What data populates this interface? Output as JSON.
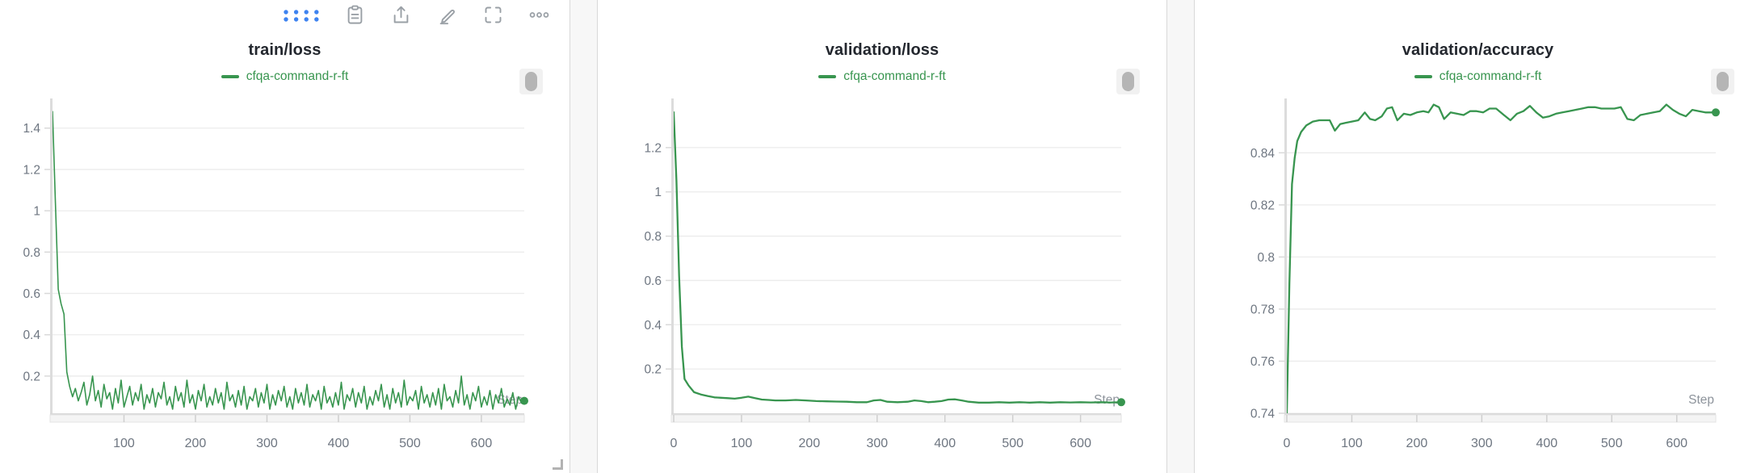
{
  "colors": {
    "series_green": "#38954f",
    "toolbar_blue": "#3e83f0",
    "icon_gray": "#9aa0a6",
    "grid_gray": "#ececec",
    "axis_rail": "#dcdcdc",
    "tick_label": "#6e7681",
    "step_label": "#8d939b",
    "title_dark": "#23272e"
  },
  "toolbar": {
    "icons": [
      {
        "name": "drag-handle",
        "style": "blue-dot-grid"
      },
      {
        "name": "copy-to-clipboard"
      },
      {
        "name": "export-share"
      },
      {
        "name": "edit-pencil"
      },
      {
        "name": "fullscreen"
      },
      {
        "name": "more-options"
      }
    ]
  },
  "panels": [
    {
      "title": "train/loss",
      "series_name": "cfqa-command-r-ft"
    },
    {
      "title": "validation/loss",
      "series_name": "cfqa-command-r-ft"
    },
    {
      "title": "validation/accuracy",
      "series_name": "cfqa-command-r-ft"
    }
  ],
  "chart_data": [
    {
      "type": "line",
      "title": "train/loss",
      "xlabel": "Step",
      "ylabel": "",
      "xlim": [
        0,
        660
      ],
      "ylim": [
        0.02,
        1.52
      ],
      "x_ticks": [
        100,
        200,
        300,
        400,
        500,
        600
      ],
      "y_ticks": [
        0.2,
        0.4,
        0.6,
        0.8,
        1.0,
        1.2,
        1.4
      ],
      "grid": "horizontal",
      "legend_position": "top-center",
      "series": [
        {
          "name": "cfqa-command-r-ft",
          "color": "#38954f",
          "x_start": 0,
          "x_step": 4,
          "end_dot": true,
          "values": [
            1.48,
            1.05,
            0.62,
            0.55,
            0.5,
            0.22,
            0.15,
            0.1,
            0.14,
            0.08,
            0.12,
            0.17,
            0.06,
            0.11,
            0.2,
            0.08,
            0.13,
            0.05,
            0.16,
            0.09,
            0.12,
            0.04,
            0.14,
            0.07,
            0.18,
            0.05,
            0.1,
            0.15,
            0.06,
            0.12,
            0.08,
            0.16,
            0.04,
            0.11,
            0.07,
            0.14,
            0.05,
            0.12,
            0.09,
            0.17,
            0.06,
            0.1,
            0.04,
            0.15,
            0.08,
            0.12,
            0.05,
            0.18,
            0.07,
            0.11,
            0.04,
            0.13,
            0.08,
            0.16,
            0.05,
            0.1,
            0.06,
            0.14,
            0.07,
            0.12,
            0.04,
            0.17,
            0.08,
            0.11,
            0.05,
            0.13,
            0.06,
            0.15,
            0.04,
            0.1,
            0.08,
            0.14,
            0.05,
            0.12,
            0.07,
            0.16,
            0.04,
            0.11,
            0.06,
            0.13,
            0.08,
            0.15,
            0.05,
            0.1,
            0.04,
            0.14,
            0.07,
            0.12,
            0.06,
            0.16,
            0.05,
            0.11,
            0.08,
            0.13,
            0.04,
            0.15,
            0.07,
            0.1,
            0.05,
            0.12,
            0.06,
            0.17,
            0.04,
            0.11,
            0.08,
            0.14,
            0.05,
            0.12,
            0.07,
            0.15,
            0.04,
            0.1,
            0.06,
            0.13,
            0.08,
            0.16,
            0.05,
            0.11,
            0.04,
            0.14,
            0.07,
            0.12,
            0.05,
            0.18,
            0.06,
            0.1,
            0.08,
            0.13,
            0.04,
            0.15,
            0.07,
            0.11,
            0.05,
            0.12,
            0.06,
            0.14,
            0.04,
            0.16,
            0.08,
            0.1,
            0.05,
            0.13,
            0.07,
            0.2,
            0.06,
            0.11,
            0.04,
            0.12,
            0.08,
            0.15,
            0.05,
            0.1,
            0.06,
            0.13,
            0.04,
            0.11,
            0.07,
            0.14,
            0.05,
            0.09,
            0.06,
            0.12,
            0.04,
            0.1,
            0.07,
            0.08
          ]
        }
      ]
    },
    {
      "type": "line",
      "title": "validation/loss",
      "xlabel": "Step",
      "ylabel": "",
      "xlim": [
        0,
        660
      ],
      "ylim": [
        0.0,
        1.4
      ],
      "x_ticks": [
        0,
        100,
        200,
        300,
        400,
        500,
        600
      ],
      "y_ticks": [
        0.2,
        0.4,
        0.6,
        0.8,
        1.0,
        1.2
      ],
      "grid": "horizontal",
      "legend_position": "top-center",
      "series": [
        {
          "name": "cfqa-command-r-ft",
          "color": "#38954f",
          "end_dot": true,
          "points": [
            [
              0,
              1.36
            ],
            [
              4,
              1.05
            ],
            [
              8,
              0.62
            ],
            [
              12,
              0.3
            ],
            [
              16,
              0.155
            ],
            [
              22,
              0.125
            ],
            [
              30,
              0.095
            ],
            [
              40,
              0.085
            ],
            [
              50,
              0.078
            ],
            [
              60,
              0.072
            ],
            [
              70,
              0.07
            ],
            [
              80,
              0.068
            ],
            [
              90,
              0.066
            ],
            [
              100,
              0.07
            ],
            [
              110,
              0.075
            ],
            [
              120,
              0.068
            ],
            [
              130,
              0.062
            ],
            [
              140,
              0.06
            ],
            [
              150,
              0.058
            ],
            [
              165,
              0.058
            ],
            [
              180,
              0.06
            ],
            [
              195,
              0.058
            ],
            [
              210,
              0.055
            ],
            [
              225,
              0.054
            ],
            [
              240,
              0.053
            ],
            [
              255,
              0.052
            ],
            [
              270,
              0.05
            ],
            [
              285,
              0.05
            ],
            [
              295,
              0.058
            ],
            [
              305,
              0.06
            ],
            [
              315,
              0.052
            ],
            [
              330,
              0.05
            ],
            [
              345,
              0.052
            ],
            [
              355,
              0.058
            ],
            [
              365,
              0.055
            ],
            [
              375,
              0.05
            ],
            [
              385,
              0.052
            ],
            [
              395,
              0.055
            ],
            [
              405,
              0.062
            ],
            [
              415,
              0.063
            ],
            [
              425,
              0.058
            ],
            [
              435,
              0.052
            ],
            [
              450,
              0.048
            ],
            [
              465,
              0.048
            ],
            [
              480,
              0.05
            ],
            [
              495,
              0.048
            ],
            [
              510,
              0.05
            ],
            [
              525,
              0.048
            ],
            [
              540,
              0.05
            ],
            [
              555,
              0.048
            ],
            [
              570,
              0.05
            ],
            [
              585,
              0.049
            ],
            [
              600,
              0.05
            ],
            [
              615,
              0.049
            ],
            [
              630,
              0.05
            ],
            [
              645,
              0.049
            ],
            [
              660,
              0.05
            ]
          ]
        }
      ]
    },
    {
      "type": "line",
      "title": "validation/accuracy",
      "xlabel": "Step",
      "ylabel": "",
      "xlim": [
        0,
        660
      ],
      "ylim": [
        0.74,
        0.859
      ],
      "x_ticks": [
        0,
        100,
        200,
        300,
        400,
        500,
        600
      ],
      "y_ticks": [
        0.74,
        0.76,
        0.78,
        0.8,
        0.82,
        0.84
      ],
      "grid": "horizontal",
      "legend_position": "top-center",
      "series": [
        {
          "name": "cfqa-command-r-ft",
          "color": "#38954f",
          "end_dot": true,
          "points": [
            [
              0,
              0.74
            ],
            [
              4,
              0.79
            ],
            [
              8,
              0.828
            ],
            [
              12,
              0.838
            ],
            [
              16,
              0.8445
            ],
            [
              22,
              0.848
            ],
            [
              30,
              0.8505
            ],
            [
              40,
              0.852
            ],
            [
              50,
              0.8525
            ],
            [
              58,
              0.8525
            ],
            [
              66,
              0.8525
            ],
            [
              74,
              0.8485
            ],
            [
              82,
              0.851
            ],
            [
              90,
              0.8515
            ],
            [
              100,
              0.852
            ],
            [
              110,
              0.8525
            ],
            [
              120,
              0.8555
            ],
            [
              128,
              0.853
            ],
            [
              136,
              0.8525
            ],
            [
              146,
              0.854
            ],
            [
              154,
              0.857
            ],
            [
              162,
              0.8575
            ],
            [
              170,
              0.8525
            ],
            [
              180,
              0.855
            ],
            [
              190,
              0.8545
            ],
            [
              200,
              0.8555
            ],
            [
              210,
              0.856
            ],
            [
              218,
              0.8555
            ],
            [
              226,
              0.8585
            ],
            [
              234,
              0.8575
            ],
            [
              242,
              0.853
            ],
            [
              252,
              0.8555
            ],
            [
              262,
              0.855
            ],
            [
              272,
              0.8545
            ],
            [
              282,
              0.856
            ],
            [
              292,
              0.856
            ],
            [
              302,
              0.8555
            ],
            [
              312,
              0.857
            ],
            [
              322,
              0.857
            ],
            [
              334,
              0.8545
            ],
            [
              344,
              0.8525
            ],
            [
              354,
              0.855
            ],
            [
              364,
              0.856
            ],
            [
              374,
              0.858
            ],
            [
              384,
              0.8555
            ],
            [
              394,
              0.8535
            ],
            [
              404,
              0.854
            ],
            [
              414,
              0.855
            ],
            [
              424,
              0.8555
            ],
            [
              434,
              0.856
            ],
            [
              444,
              0.8565
            ],
            [
              454,
              0.857
            ],
            [
              464,
              0.8575
            ],
            [
              474,
              0.8575
            ],
            [
              484,
              0.857
            ],
            [
              494,
              0.857
            ],
            [
              504,
              0.857
            ],
            [
              514,
              0.8575
            ],
            [
              524,
              0.853
            ],
            [
              534,
              0.8525
            ],
            [
              544,
              0.8545
            ],
            [
              554,
              0.855
            ],
            [
              564,
              0.8555
            ],
            [
              574,
              0.856
            ],
            [
              584,
              0.8585
            ],
            [
              594,
              0.8565
            ],
            [
              604,
              0.855
            ],
            [
              614,
              0.854
            ],
            [
              624,
              0.8565
            ],
            [
              634,
              0.856
            ],
            [
              644,
              0.8555
            ],
            [
              654,
              0.8555
            ],
            [
              660,
              0.8555
            ]
          ]
        }
      ]
    }
  ]
}
